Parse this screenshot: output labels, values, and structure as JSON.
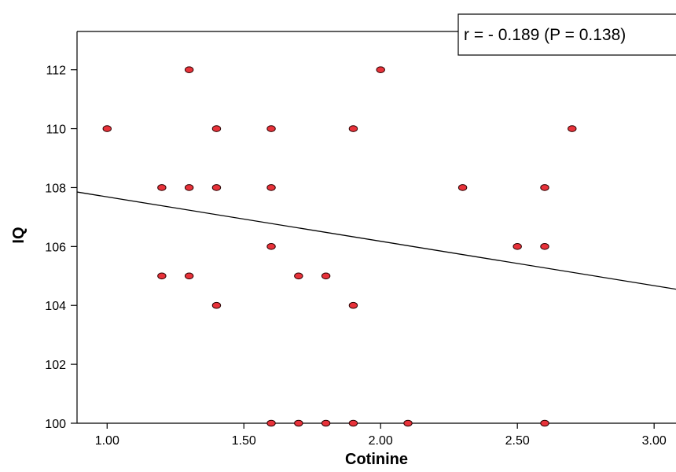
{
  "chart_data": {
    "type": "scatter",
    "title": "",
    "xlabel": "Cotinine",
    "ylabel": "IQ",
    "xlim": [
      0.89,
      3.08
    ],
    "ylim": [
      100,
      113.3
    ],
    "x_ticks": [
      1.0,
      1.5,
      2.0,
      2.5,
      3.0
    ],
    "x_tick_labels": [
      "1.00",
      "1.50",
      "2.00",
      "2.50",
      "3.00"
    ],
    "y_ticks": [
      100,
      102,
      104,
      106,
      108,
      110,
      112
    ],
    "y_tick_labels": [
      "100",
      "102",
      "104",
      "106",
      "108",
      "110",
      "112"
    ],
    "grid": false,
    "marker_color": "#e8323a",
    "points": [
      {
        "x": 1.0,
        "y": 110
      },
      {
        "x": 1.2,
        "y": 108
      },
      {
        "x": 1.2,
        "y": 105
      },
      {
        "x": 1.3,
        "y": 112
      },
      {
        "x": 1.3,
        "y": 108
      },
      {
        "x": 1.3,
        "y": 105
      },
      {
        "x": 1.4,
        "y": 110
      },
      {
        "x": 1.4,
        "y": 108
      },
      {
        "x": 1.4,
        "y": 104
      },
      {
        "x": 1.6,
        "y": 110
      },
      {
        "x": 1.6,
        "y": 108
      },
      {
        "x": 1.6,
        "y": 106
      },
      {
        "x": 1.6,
        "y": 100
      },
      {
        "x": 1.7,
        "y": 105
      },
      {
        "x": 1.7,
        "y": 100
      },
      {
        "x": 1.8,
        "y": 105
      },
      {
        "x": 1.8,
        "y": 100
      },
      {
        "x": 1.9,
        "y": 110
      },
      {
        "x": 1.9,
        "y": 104
      },
      {
        "x": 1.9,
        "y": 100
      },
      {
        "x": 2.0,
        "y": 112
      },
      {
        "x": 2.1,
        "y": 100
      },
      {
        "x": 2.3,
        "y": 108
      },
      {
        "x": 2.5,
        "y": 106
      },
      {
        "x": 2.6,
        "y": 108
      },
      {
        "x": 2.6,
        "y": 106
      },
      {
        "x": 2.6,
        "y": 100
      },
      {
        "x": 2.7,
        "y": 110
      }
    ],
    "fit_line": {
      "points": [
        {
          "x": 0.89,
          "y": 107.85
        },
        {
          "x": 3.08,
          "y": 104.55
        }
      ]
    },
    "annotation": {
      "text": "r = - 0.189 (P = 0.138)",
      "placement": "top-right"
    }
  }
}
